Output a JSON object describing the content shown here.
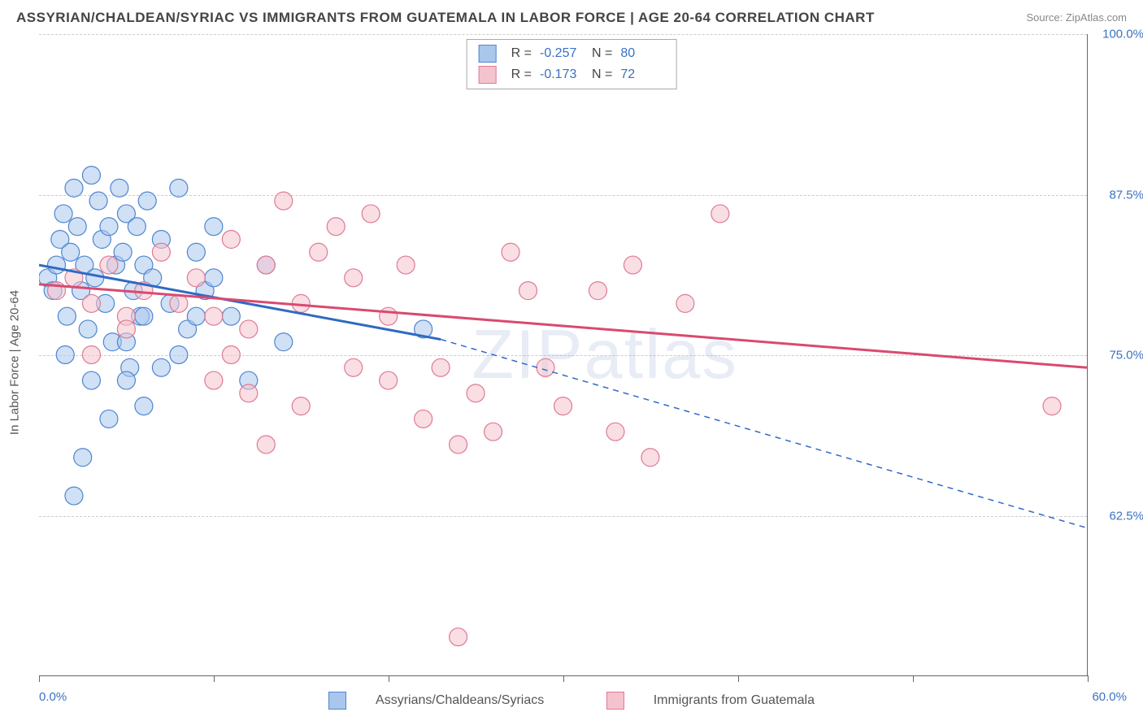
{
  "title": "ASSYRIAN/CHALDEAN/SYRIAC VS IMMIGRANTS FROM GUATEMALA IN LABOR FORCE | AGE 20-64 CORRELATION CHART",
  "source": "Source: ZipAtlas.com",
  "watermark": "ZIPatlas",
  "chart": {
    "type": "scatter",
    "ylabel": "In Labor Force | Age 20-64",
    "xlim": [
      0,
      60
    ],
    "ylim": [
      50,
      100
    ],
    "xtick_positions": [
      0,
      10,
      20,
      30,
      40,
      50,
      60
    ],
    "xtick_labels": {
      "min": "0.0%",
      "max": "60.0%"
    },
    "ytick": [
      {
        "v": 62.5,
        "label": "62.5%"
      },
      {
        "v": 75.0,
        "label": "75.0%"
      },
      {
        "v": 87.5,
        "label": "87.5%"
      },
      {
        "v": 100.0,
        "label": "100.0%"
      }
    ],
    "grid_color": "#cccccc",
    "background_color": "#ffffff",
    "marker_radius": 11,
    "series": [
      {
        "name": "Assyrians/Chaldeans/Syriacs",
        "fill": "#a9c7ec",
        "stroke": "#4f86d1",
        "R": "-0.257",
        "N": "80",
        "trend": {
          "x1": 0,
          "y1": 82.0,
          "x2": 23,
          "y2": 76.2,
          "dash_x2": 60,
          "dash_y2": 61.5,
          "color": "#2f6ac4",
          "width": 3
        },
        "points": [
          [
            0.5,
            81
          ],
          [
            0.8,
            80
          ],
          [
            1.0,
            82
          ],
          [
            1.2,
            84
          ],
          [
            1.4,
            86
          ],
          [
            1.6,
            78
          ],
          [
            1.8,
            83
          ],
          [
            2.0,
            88
          ],
          [
            2.2,
            85
          ],
          [
            2.4,
            80
          ],
          [
            2.6,
            82
          ],
          [
            2.8,
            77
          ],
          [
            3.0,
            89
          ],
          [
            3.2,
            81
          ],
          [
            3.4,
            87
          ],
          [
            3.6,
            84
          ],
          [
            3.8,
            79
          ],
          [
            4.0,
            85
          ],
          [
            4.2,
            76
          ],
          [
            4.4,
            82
          ],
          [
            4.6,
            88
          ],
          [
            4.8,
            83
          ],
          [
            5.0,
            86
          ],
          [
            5.2,
            74
          ],
          [
            5.4,
            80
          ],
          [
            5.6,
            85
          ],
          [
            5.8,
            78
          ],
          [
            6.0,
            82
          ],
          [
            6.2,
            87
          ],
          [
            6.5,
            81
          ],
          [
            7.0,
            84
          ],
          [
            7.5,
            79
          ],
          [
            8.0,
            88
          ],
          [
            8.5,
            77
          ],
          [
            9.0,
            83
          ],
          [
            9.5,
            80
          ],
          [
            10,
            85
          ],
          [
            2.0,
            64
          ],
          [
            2.5,
            67
          ],
          [
            1.5,
            75
          ],
          [
            3.0,
            73
          ],
          [
            4.0,
            70
          ],
          [
            5.0,
            73
          ],
          [
            6.0,
            71
          ],
          [
            7.0,
            74
          ],
          [
            11,
            78
          ],
          [
            12,
            73
          ],
          [
            13,
            82
          ],
          [
            14,
            76
          ],
          [
            22,
            77
          ],
          [
            10,
            81
          ],
          [
            9,
            78
          ],
          [
            8,
            75
          ],
          [
            6,
            78
          ],
          [
            5,
            76
          ]
        ]
      },
      {
        "name": "Immigrants from Guatemala",
        "fill": "#f4c3ce",
        "stroke": "#e07a94",
        "R": "-0.173",
        "N": "72",
        "trend": {
          "x1": 0,
          "y1": 80.5,
          "x2": 60,
          "y2": 74.0,
          "color": "#d94a70",
          "width": 3
        },
        "points": [
          [
            1,
            80
          ],
          [
            2,
            81
          ],
          [
            3,
            79
          ],
          [
            4,
            82
          ],
          [
            5,
            78
          ],
          [
            6,
            80
          ],
          [
            7,
            83
          ],
          [
            8,
            79
          ],
          [
            9,
            81
          ],
          [
            10,
            78
          ],
          [
            11,
            84
          ],
          [
            12,
            77
          ],
          [
            13,
            82
          ],
          [
            14,
            87
          ],
          [
            15,
            79
          ],
          [
            16,
            83
          ],
          [
            17,
            85
          ],
          [
            18,
            81
          ],
          [
            19,
            86
          ],
          [
            20,
            78
          ],
          [
            21,
            82
          ],
          [
            22,
            70
          ],
          [
            23,
            74
          ],
          [
            24,
            68
          ],
          [
            25,
            72
          ],
          [
            26,
            69
          ],
          [
            27,
            83
          ],
          [
            28,
            80
          ],
          [
            29,
            74
          ],
          [
            30,
            71
          ],
          [
            12,
            72
          ],
          [
            13,
            68
          ],
          [
            15,
            71
          ],
          [
            18,
            74
          ],
          [
            20,
            73
          ],
          [
            32,
            80
          ],
          [
            33,
            69
          ],
          [
            34,
            82
          ],
          [
            35,
            67
          ],
          [
            37,
            79
          ],
          [
            39,
            86
          ],
          [
            10,
            73
          ],
          [
            11,
            75
          ],
          [
            5,
            77
          ],
          [
            3,
            75
          ],
          [
            24,
            53
          ],
          [
            58,
            71
          ]
        ]
      }
    ]
  },
  "legend_bottom": [
    {
      "label": "Assyrians/Chaldeans/Syriacs",
      "fill": "#a9c7ec",
      "stroke": "#4f86d1"
    },
    {
      "label": "Immigrants from Guatemala",
      "fill": "#f4c3ce",
      "stroke": "#e07a94"
    }
  ]
}
